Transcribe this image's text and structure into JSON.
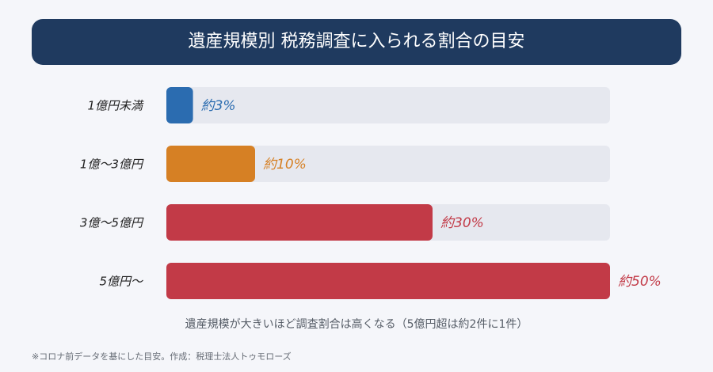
{
  "chart_data": {
    "type": "bar",
    "orientation": "horizontal",
    "title": "遺産規模別 税務調査に入られる割合の目安",
    "categories": [
      "1億円未満",
      "1億～3億円",
      "3億～5億円",
      "5億円～"
    ],
    "values": [
      3,
      10,
      30,
      50
    ],
    "value_labels": [
      "約3%",
      "約10%",
      "約30%",
      "約50%"
    ],
    "colors": [
      "#2b6cb0",
      "#d68024",
      "#c23a47",
      "#c23a47"
    ],
    "xlim": [
      0,
      50
    ],
    "annotation": "遺産規模が大きいほど調査割合は高くなる（5億円超は約2件に1件）",
    "footnote": "※コロナ前データを基にした目安。作成：税理士法人トゥモローズ"
  }
}
